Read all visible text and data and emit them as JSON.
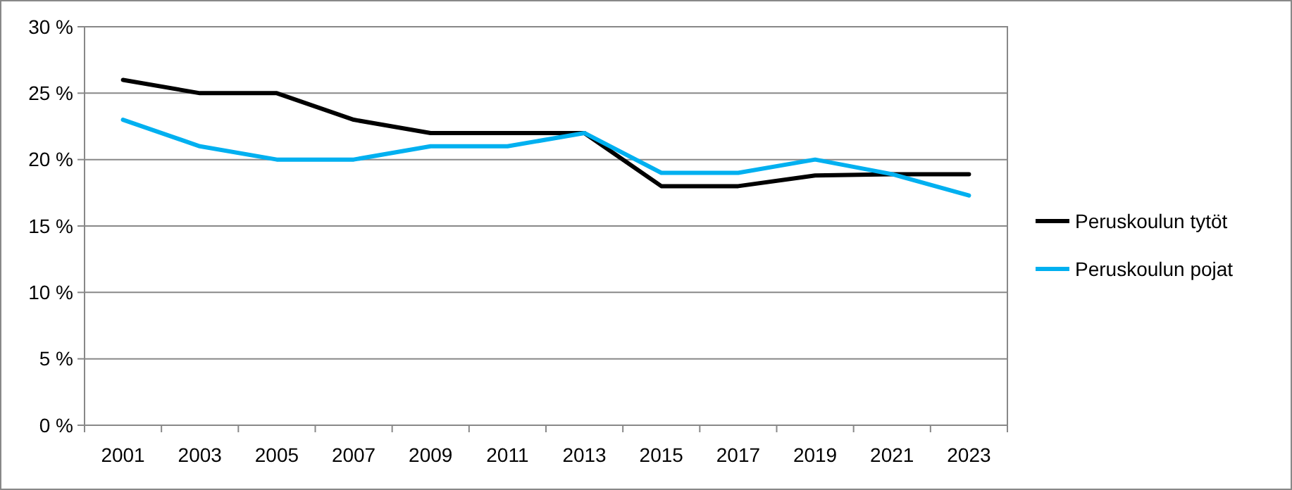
{
  "chart_data": {
    "type": "line",
    "categories": [
      "2001",
      "2003",
      "2005",
      "2007",
      "2009",
      "2011",
      "2013",
      "2015",
      "2017",
      "2019",
      "2021",
      "2023"
    ],
    "series": [
      {
        "name": "Peruskoulun tytöt",
        "color": "#000000",
        "values": [
          26,
          25,
          25,
          23,
          22,
          22,
          22,
          18,
          18,
          18.8,
          18.9,
          18.9
        ]
      },
      {
        "name": "Peruskoulun pojat",
        "color": "#00b0f0",
        "values": [
          23,
          21,
          20,
          20,
          21,
          21,
          22,
          19,
          19,
          20,
          18.9,
          17.3
        ]
      }
    ],
    "ylim": [
      0,
      30
    ],
    "yticks": [
      {
        "value": 0,
        "label": "0 %"
      },
      {
        "value": 5,
        "label": "5 %"
      },
      {
        "value": 10,
        "label": "10 %"
      },
      {
        "value": 15,
        "label": "15 %"
      },
      {
        "value": 20,
        "label": "20 %"
      },
      {
        "value": 25,
        "label": "25 %"
      },
      {
        "value": 30,
        "label": "30 %"
      }
    ],
    "grid": "y",
    "legend": "right",
    "marker": "none",
    "line_style": "solid"
  }
}
